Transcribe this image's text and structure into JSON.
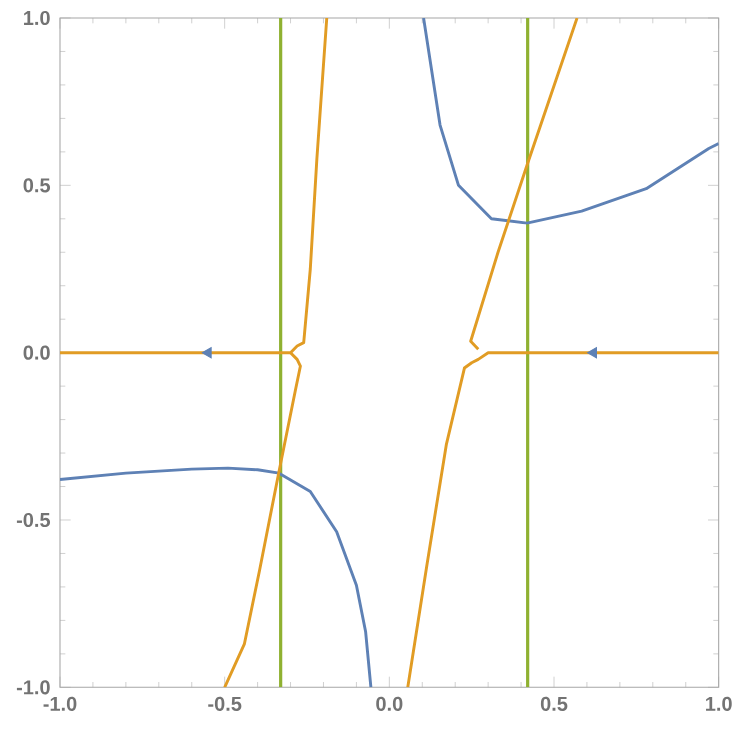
{
  "chart_data": {
    "type": "line",
    "xlim": [
      -1,
      1
    ],
    "ylim": [
      -1,
      1
    ],
    "xticks": [
      {
        "value": -1,
        "label": "-1.0"
      },
      {
        "value": -0.5,
        "label": "-0.5"
      },
      {
        "value": 0,
        "label": "0.0"
      },
      {
        "value": 0.5,
        "label": "0.5"
      },
      {
        "value": 1,
        "label": "1.0"
      }
    ],
    "yticks": [
      {
        "value": -1,
        "label": "-1.0"
      },
      {
        "value": -0.5,
        "label": "-0.5"
      },
      {
        "value": 0,
        "label": "0.0"
      },
      {
        "value": 0.5,
        "label": "0.5"
      },
      {
        "value": 1,
        "label": "1.0"
      }
    ],
    "grid": false,
    "legend": false,
    "marker": "none",
    "line_style": "solid",
    "series": [
      {
        "color": "#5e81b5",
        "x": [
          -1,
          -0.8,
          -0.6,
          -0.49,
          -0.4,
          -0.335,
          -0.24,
          -0.16,
          -0.1,
          -0.072,
          -0.056
        ],
        "values": [
          -0.379,
          -0.36,
          -0.348,
          -0.345,
          -0.35,
          -0.36,
          -0.415,
          -0.535,
          -0.695,
          -0.834,
          -1.0
        ]
      },
      {
        "color": "#5e81b5",
        "x": [
          0.104,
          0.154,
          0.21,
          0.31,
          0.418,
          0.584,
          0.78,
          0.97,
          1
        ],
        "values": [
          1.0,
          0.68,
          0.5,
          0.4,
          0.387,
          0.423,
          0.49,
          0.61,
          0.625
        ]
      },
      {
        "color": "#e19c24",
        "x": [
          -1,
          -0.3,
          -0.28,
          -0.26,
          -0.24,
          -0.22,
          -0.19
        ],
        "values": [
          0,
          0,
          0.02,
          0.03,
          0.25,
          0.58,
          1.0
        ]
      },
      {
        "color": "#e19c24",
        "x": [
          -0.3,
          -0.28,
          -0.27,
          -0.286,
          -0.335,
          -0.394,
          -0.44,
          -0.5
        ],
        "values": [
          0,
          -0.02,
          -0.04,
          -0.116,
          -0.355,
          -0.65,
          -0.87,
          -1.0
        ]
      },
      {
        "color": "#e19c24",
        "x": [
          0.056,
          0.114,
          0.173,
          0.228,
          0.25,
          0.27,
          0.3,
          1
        ],
        "values": [
          -1.0,
          -0.635,
          -0.275,
          -0.046,
          -0.03,
          -0.02,
          0,
          0
        ]
      },
      {
        "color": "#e19c24",
        "x": [
          0.27,
          0.247,
          0.33,
          0.418,
          0.57
        ],
        "values": [
          0.01,
          0.034,
          0.3,
          0.56,
          1.0
        ]
      },
      {
        "type": "scatter",
        "marker": "triangle",
        "color": "#5e81b5",
        "x": [
          -0.55,
          0.62
        ],
        "values": [
          0,
          0
        ]
      }
    ],
    "ref_lines": [
      {
        "axis": "x",
        "value": -0.33,
        "color": "#8fb131"
      },
      {
        "axis": "x",
        "value": 0.42,
        "color": "#8fb131"
      }
    ]
  }
}
